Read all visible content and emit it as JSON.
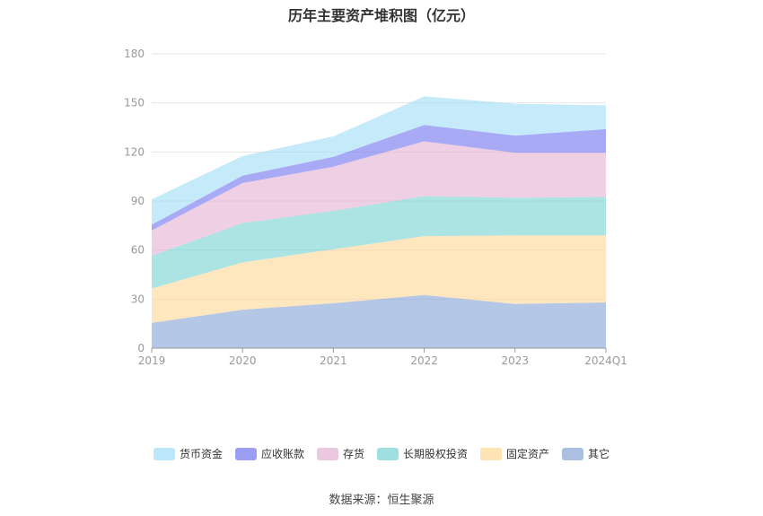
{
  "chart_data": {
    "type": "area",
    "stacked": true,
    "title": "历年主要资产堆积图（亿元）",
    "categories": [
      "2019",
      "2020",
      "2021",
      "2022",
      "2023",
      "2024Q1"
    ],
    "ylim": [
      0,
      180
    ],
    "yticks": [
      0,
      30,
      60,
      90,
      120,
      150,
      180
    ],
    "grid": true,
    "legend_position": "bottom",
    "series": [
      {
        "name": "其它",
        "color": "#8ea9d8",
        "values": [
          15.5,
          23.5,
          27.5,
          32.5,
          27.0,
          28.0
        ]
      },
      {
        "name": "固定资产",
        "color": "#fdd99c",
        "values": [
          21.0,
          29.0,
          33.0,
          36.0,
          42.0,
          41.0
        ]
      },
      {
        "name": "长期股权投资",
        "color": "#7fd4d4",
        "values": [
          20.0,
          24.0,
          23.5,
          24.5,
          23.0,
          23.5
        ]
      },
      {
        "name": "存货",
        "color": "#e6b6d6",
        "values": [
          15.5,
          24.5,
          27.0,
          33.5,
          27.5,
          27.0
        ]
      },
      {
        "name": "应收账款",
        "color": "#7b7df0",
        "values": [
          3.5,
          4.5,
          6.0,
          10.0,
          10.5,
          14.5
        ]
      },
      {
        "name": "货币资金",
        "color": "#a6dff8",
        "values": [
          15.5,
          12.0,
          12.5,
          17.5,
          19.5,
          14.5
        ]
      }
    ],
    "legend_order": [
      "货币资金",
      "应收账款",
      "存货",
      "长期股权投资",
      "固定资产",
      "其它"
    ]
  },
  "footer": {
    "source": "数据来源：恒生聚源"
  }
}
